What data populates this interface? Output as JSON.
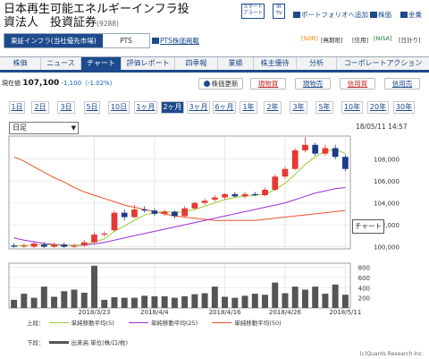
{
  "header": {
    "title_line1": "日本再生可能エネルギーインフラ投",
    "title_line2": "資法人　投資証券",
    "code": "(9288)",
    "smart_alert": "スマート\nアラート",
    "ir_tv": "IR\nTV",
    "portfolio_add": "ポートフォリオへ追加",
    "stock_price_link": "株価",
    "dividend_link": "金乗"
  },
  "market": {
    "selected": "東証インフラ(当社優先市場)",
    "other": "PTS",
    "pts_link": "PTS株価掲載",
    "tags": [
      "[SOR]",
      "[無期限]",
      "[信用]",
      "[NISA]",
      "[日計り]"
    ]
  },
  "nav": [
    "株価",
    "ニュース",
    "チャート",
    "評価レポート",
    "四季報",
    "業績",
    "株主優待",
    "分析",
    "コーポレートアクション"
  ],
  "nav_active": 2,
  "price": {
    "label": "現在値",
    "value": "107,100",
    "change": "-1,100（-1.02%）",
    "update": "株価更新",
    "buy_spot": "現物買",
    "sell_spot": "現物売",
    "buy_margin": "信用買",
    "sell_margin": "信用売"
  },
  "periods": [
    "1日",
    "2日",
    "3日",
    "5日",
    "10日",
    "1ヶ月",
    "2ヶ月",
    "3ヶ月",
    "6ヶ月",
    "1年",
    "2年",
    "3年",
    "5年",
    "10年",
    "20年",
    "30年"
  ],
  "period_active": 6,
  "chart_controls": {
    "interval": "日足",
    "datetime": "18/05/11 14:57",
    "chart_button": "チャート"
  },
  "legend": {
    "upper_label": "上段：",
    "ma5": "単純移動平均(5)",
    "ma25": "単純移動平均(25)",
    "ma50": "単純移動平均(50)",
    "lower_label": "下段：",
    "volume": "出来高 単位(株/口/枚)"
  },
  "copyright": "(c)Quants Research Inc.",
  "colors": {
    "accent": "#1d4a8c",
    "up": "#e53935",
    "down": "#1e3a8a",
    "ma5": "#9acd32",
    "ma25": "#9b30d9",
    "ma50": "#e8542a"
  },
  "chart_data": {
    "type": "candlestick",
    "y_ticks": [
      "108,000",
      "106,000",
      "104,000",
      "102,000",
      "100,000"
    ],
    "ylim": [
      99800,
      110100
    ],
    "x_labels": [
      "2018/3/23",
      "2018/4/4",
      "2018/4/16",
      "2018/4/26",
      "2018/5/11"
    ],
    "candles": [
      {
        "o": 100100,
        "h": 100300,
        "l": 99900,
        "c": 100000
      },
      {
        "o": 100100,
        "h": 100300,
        "l": 99900,
        "c": 100100
      },
      {
        "o": 100000,
        "h": 100400,
        "l": 99900,
        "c": 100300
      },
      {
        "o": 100200,
        "h": 100400,
        "l": 99900,
        "c": 100000
      },
      {
        "o": 100000,
        "h": 100400,
        "l": 99900,
        "c": 100200
      },
      {
        "o": 100200,
        "h": 100400,
        "l": 99900,
        "c": 100000
      },
      {
        "o": 100000,
        "h": 100300,
        "l": 99900,
        "c": 100100
      },
      {
        "o": 100100,
        "h": 100600,
        "l": 100000,
        "c": 100400
      },
      {
        "o": 100400,
        "h": 101300,
        "l": 100300,
        "c": 101100
      },
      {
        "o": 101100,
        "h": 101400,
        "l": 100900,
        "c": 101200
      },
      {
        "o": 101500,
        "h": 103300,
        "l": 101400,
        "c": 103100
      },
      {
        "o": 103100,
        "h": 103400,
        "l": 102400,
        "c": 102700
      },
      {
        "o": 102700,
        "h": 103800,
        "l": 102600,
        "c": 103400
      },
      {
        "o": 103400,
        "h": 103700,
        "l": 103100,
        "c": 103300
      },
      {
        "o": 103300,
        "h": 103500,
        "l": 102800,
        "c": 103000
      },
      {
        "o": 103000,
        "h": 103400,
        "l": 102800,
        "c": 103200
      },
      {
        "o": 103200,
        "h": 103300,
        "l": 102600,
        "c": 102800
      },
      {
        "o": 102800,
        "h": 103700,
        "l": 102700,
        "c": 103500
      },
      {
        "o": 103500,
        "h": 104100,
        "l": 103400,
        "c": 104000
      },
      {
        "o": 104000,
        "h": 104400,
        "l": 103800,
        "c": 104200
      },
      {
        "o": 104300,
        "h": 104700,
        "l": 104100,
        "c": 104500
      },
      {
        "o": 104500,
        "h": 104900,
        "l": 104300,
        "c": 104800
      },
      {
        "o": 104800,
        "h": 105000,
        "l": 104500,
        "c": 104600
      },
      {
        "o": 104600,
        "h": 105000,
        "l": 104400,
        "c": 104800
      },
      {
        "o": 104800,
        "h": 105000,
        "l": 104600,
        "c": 104700
      },
      {
        "o": 104700,
        "h": 105400,
        "l": 104600,
        "c": 105200
      },
      {
        "o": 105200,
        "h": 106600,
        "l": 105100,
        "c": 106400
      },
      {
        "o": 106400,
        "h": 107300,
        "l": 106200,
        "c": 107100
      },
      {
        "o": 107100,
        "h": 109000,
        "l": 107000,
        "c": 108800
      },
      {
        "o": 108800,
        "h": 110000,
        "l": 108600,
        "c": 109300
      },
      {
        "o": 109300,
        "h": 109500,
        "l": 108300,
        "c": 108500
      },
      {
        "o": 108500,
        "h": 109300,
        "l": 108300,
        "c": 109000
      },
      {
        "o": 109000,
        "h": 109300,
        "l": 108000,
        "c": 108200
      },
      {
        "o": 108200,
        "h": 108400,
        "l": 106900,
        "c": 107100
      }
    ],
    "ma5": [
      100100,
      100100,
      100150,
      100200,
      100150,
      100100,
      100100,
      100200,
      100450,
      100700,
      101400,
      101900,
      102400,
      102900,
      103100,
      103200,
      103100,
      103200,
      103400,
      103700,
      104000,
      104300,
      104500,
      104600,
      104700,
      104800,
      105200,
      105800,
      106600,
      107500,
      108200,
      108700,
      108900,
      108500
    ],
    "ma25": [
      100800,
      100600,
      100450,
      100300,
      100200,
      100150,
      100100,
      100150,
      100250,
      100400,
      100600,
      100800,
      101000,
      101200,
      101400,
      101600,
      101800,
      102000,
      102200,
      102400,
      102600,
      102800,
      103000,
      103200,
      103400,
      103600,
      103800,
      104000,
      104300,
      104600,
      104900,
      105100,
      105300,
      105400
    ],
    "ma50": [
      108200,
      107800,
      107300,
      106800,
      106300,
      105900,
      105400,
      105000,
      104700,
      104400,
      104100,
      103800,
      103600,
      103400,
      103200,
      103000,
      102800,
      102700,
      102600,
      102500,
      102400,
      102400,
      102400,
      102400,
      102400,
      102500,
      102600,
      102700,
      102800,
      102900,
      103000,
      103100,
      103200,
      103300
    ],
    "volume_ticks": [
      "800",
      "600",
      "400",
      "200"
    ],
    "volume_max": 880,
    "volume": [
      160,
      280,
      200,
      420,
      220,
      330,
      360,
      300,
      830,
      160,
      210,
      200,
      200,
      240,
      230,
      230,
      200,
      230,
      270,
      290,
      420,
      220,
      200,
      240,
      280,
      260,
      500,
      290,
      420,
      360,
      420,
      280,
      460,
      260
    ]
  }
}
